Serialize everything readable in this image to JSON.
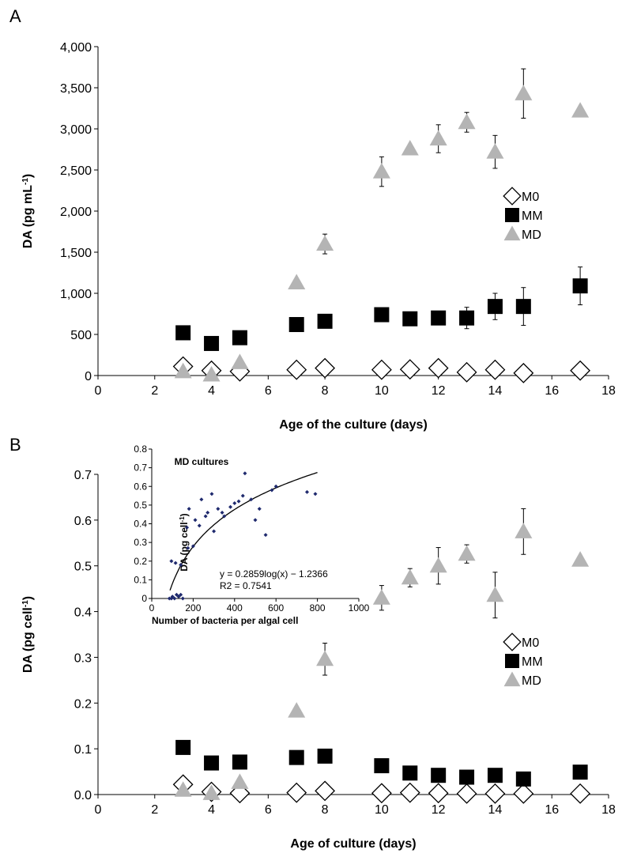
{
  "chart_data": [
    {
      "type": "scatter",
      "panel_label": "A",
      "xlabel": "Age of the culture (days)",
      "ylabel": "DA (pg mL",
      "ylabel_sup": "-1",
      "ylabel_end": ")",
      "xlim": [
        0,
        18
      ],
      "ylim": [
        0,
        4000
      ],
      "x_ticks": [
        "0",
        "2",
        "4",
        "6",
        "8",
        "10",
        "12",
        "14",
        "16",
        "18"
      ],
      "y_ticks": [
        "0",
        "500",
        "1,000",
        "1,500",
        "2,000",
        "2,500",
        "3,000",
        "3,500",
        "4,000"
      ],
      "legend_position": "right",
      "series": [
        {
          "name": "M0",
          "marker": "diamond-open",
          "color": "#000000",
          "x": [
            3,
            4,
            5,
            7,
            8,
            10,
            11,
            12,
            13,
            14,
            15,
            17
          ],
          "y": [
            110,
            60,
            50,
            70,
            90,
            70,
            75,
            90,
            40,
            70,
            30,
            60
          ],
          "err": [
            0,
            0,
            0,
            0,
            0,
            0,
            0,
            0,
            0,
            0,
            0,
            0
          ]
        },
        {
          "name": "MM",
          "marker": "square-filled",
          "color": "#000000",
          "x": [
            3,
            4,
            5,
            7,
            8,
            10,
            11,
            12,
            13,
            14,
            15,
            17
          ],
          "y": [
            520,
            390,
            460,
            620,
            660,
            740,
            690,
            700,
            700,
            840,
            840,
            1090
          ],
          "err": [
            0,
            0,
            0,
            0,
            0,
            0,
            0,
            0,
            130,
            160,
            230,
            230
          ]
        },
        {
          "name": "MD",
          "marker": "triangle-filled",
          "color": "#b4b4b4",
          "x": [
            3,
            4,
            5,
            7,
            8,
            10,
            11,
            12,
            13,
            14,
            15,
            17
          ],
          "y": [
            50,
            10,
            160,
            1130,
            1600,
            2480,
            2760,
            2880,
            3080,
            2720,
            3430,
            3220
          ],
          "err": [
            0,
            0,
            0,
            0,
            120,
            180,
            0,
            170,
            120,
            200,
            300,
            0
          ]
        }
      ]
    },
    {
      "type": "scatter",
      "panel_label": "B",
      "xlabel": "Age of culture (days)",
      "ylabel": "DA (pg cell",
      "ylabel_sup": "-1",
      "ylabel_end": ")",
      "xlim": [
        0,
        18
      ],
      "ylim": [
        0,
        0.7
      ],
      "x_ticks": [
        "0",
        "2",
        "4",
        "6",
        "8",
        "10",
        "12",
        "14",
        "16",
        "18"
      ],
      "y_ticks": [
        "0.0",
        "0.1",
        "0.2",
        "0.3",
        "0.4",
        "0.5",
        "0.6",
        "0.7"
      ],
      "legend_position": "right",
      "series": [
        {
          "name": "M0",
          "marker": "diamond-open",
          "color": "#000000",
          "x": [
            3,
            4,
            5,
            7,
            8,
            10,
            11,
            12,
            13,
            14,
            15,
            17
          ],
          "y": [
            0.022,
            0.006,
            0.003,
            0.004,
            0.008,
            0.003,
            0.004,
            0.003,
            0.002,
            0.002,
            0.002,
            0.002
          ],
          "err": [
            0,
            0,
            0,
            0,
            0,
            0,
            0,
            0,
            0,
            0,
            0,
            0
          ]
        },
        {
          "name": "MM",
          "marker": "square-filled",
          "color": "#000000",
          "x": [
            3,
            4,
            5,
            7,
            8,
            10,
            11,
            12,
            13,
            14,
            15,
            17
          ],
          "y": [
            0.103,
            0.069,
            0.071,
            0.081,
            0.084,
            0.063,
            0.047,
            0.042,
            0.038,
            0.042,
            0.034,
            0.049
          ],
          "err": [
            0,
            0,
            0,
            0,
            0,
            0,
            0,
            0,
            0,
            0,
            0,
            0
          ]
        },
        {
          "name": "MD",
          "marker": "triangle-filled",
          "color": "#b4b4b4",
          "x": [
            3,
            4,
            5,
            7,
            8,
            10,
            11,
            12,
            13,
            14,
            15,
            17
          ],
          "y": [
            0.01,
            0.003,
            0.027,
            0.183,
            0.296,
            0.43,
            0.474,
            0.5,
            0.526,
            0.436,
            0.575,
            0.513
          ],
          "err": [
            0,
            0,
            0,
            0,
            0.035,
            0.027,
            0.02,
            0.04,
            0.02,
            0.05,
            0.05,
            0
          ]
        }
      ]
    },
    {
      "type": "scatter",
      "inset_of": "B",
      "title": "MD cultures",
      "xlabel": "Number of bacteria per algal cell",
      "ylabel": "DA (pg cell",
      "ylabel_sup": "-1",
      "ylabel_end": ")",
      "xlim": [
        0,
        1000
      ],
      "ylim": [
        0,
        0.8
      ],
      "x_ticks": [
        "0",
        "200",
        "400",
        "600",
        "800",
        "1000"
      ],
      "y_ticks": [
        "0",
        "0.1",
        "0.2",
        "0.3",
        "0.4",
        "0.5",
        "0.6",
        "0.7",
        "0.8"
      ],
      "marker_color": "#1f2a6e",
      "x": [
        85,
        95,
        100,
        110,
        120,
        130,
        140,
        150,
        95,
        115,
        140,
        170,
        175,
        180,
        200,
        210,
        230,
        240,
        260,
        270,
        290,
        300,
        320,
        340,
        350,
        380,
        400,
        420,
        440,
        450,
        480,
        500,
        520,
        550,
        580,
        600,
        750,
        790
      ],
      "y": [
        0.0,
        0.0,
        0.01,
        0.0,
        0.02,
        0.01,
        0.02,
        0.0,
        0.2,
        0.19,
        0.18,
        0.38,
        0.27,
        0.48,
        0.28,
        0.42,
        0.39,
        0.53,
        0.44,
        0.46,
        0.56,
        0.36,
        0.48,
        0.46,
        0.44,
        0.49,
        0.51,
        0.52,
        0.55,
        0.67,
        0.53,
        0.42,
        0.48,
        0.34,
        0.58,
        0.6,
        0.57,
        0.56
      ],
      "fit_equation": "y = 0.2859log(x) − 1.2366",
      "r2_text": "R2 = 0.7541",
      "fit": {
        "a": 0.2859,
        "b": -1.2366,
        "x_range": [
          88,
          800
        ]
      }
    }
  ]
}
